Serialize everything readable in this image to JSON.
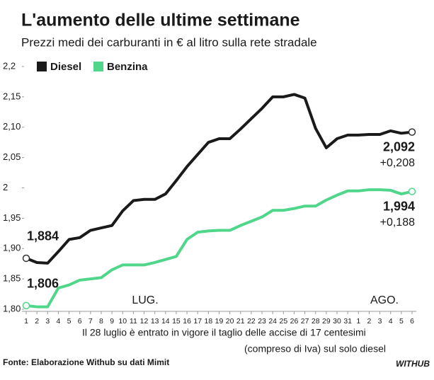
{
  "chart_data": {
    "type": "line",
    "title": "L'aumento delle ultime settimane",
    "subtitle": "Prezzi medi dei carburanti in € al litro sulla rete stradale",
    "categories": [
      "1",
      "2",
      "3",
      "4",
      "5",
      "6",
      "7",
      "8",
      "9",
      "10",
      "11",
      "12",
      "13",
      "14",
      "15",
      "16",
      "17",
      "18",
      "19",
      "20",
      "21",
      "22",
      "23",
      "24",
      "25",
      "26",
      "27",
      "28",
      "29",
      "30",
      "31",
      "1",
      "2",
      "3",
      "4",
      "5",
      "6"
    ],
    "month_labels": [
      "LUG.",
      "AGO."
    ],
    "series": [
      {
        "name": "Diesel",
        "color": "#1a1a1a",
        "values": [
          1.884,
          1.877,
          1.876,
          1.895,
          1.915,
          1.918,
          1.93,
          1.934,
          1.938,
          1.962,
          1.979,
          1.981,
          1.981,
          1.99,
          2.012,
          2.035,
          2.055,
          2.075,
          2.081,
          2.081,
          2.097,
          2.114,
          2.131,
          2.15,
          2.15,
          2.154,
          2.148,
          2.098,
          2.066,
          2.081,
          2.087,
          2.087,
          2.088,
          2.088,
          2.094,
          2.09,
          2.092
        ],
        "value_labels": [
          "1,884",
          null,
          null,
          null,
          null,
          null,
          null,
          null,
          null,
          null,
          null,
          null,
          null,
          null,
          null,
          null,
          null,
          null,
          null,
          null,
          null,
          null,
          null,
          null,
          null,
          null,
          null,
          null,
          null,
          null,
          null,
          null,
          null,
          null,
          null,
          null,
          "2,092"
        ],
        "change": "+0,208"
      },
      {
        "name": "Benzina",
        "color": "#4fd68a",
        "values": [
          1.806,
          1.804,
          1.804,
          1.835,
          1.84,
          1.848,
          1.85,
          1.852,
          1.865,
          1.873,
          1.873,
          1.873,
          1.877,
          1.882,
          1.887,
          1.915,
          1.927,
          1.929,
          1.93,
          1.93,
          1.938,
          1.945,
          1.952,
          1.963,
          1.963,
          1.966,
          1.97,
          1.97,
          1.98,
          1.988,
          1.995,
          1.995,
          1.997,
          1.997,
          1.996,
          1.99,
          1.994
        ],
        "value_labels": [
          "1,806",
          null,
          null,
          null,
          null,
          null,
          null,
          null,
          null,
          null,
          null,
          null,
          null,
          null,
          null,
          null,
          null,
          null,
          null,
          null,
          null,
          null,
          null,
          null,
          null,
          null,
          null,
          null,
          null,
          null,
          null,
          null,
          null,
          null,
          null,
          null,
          "1,994"
        ],
        "change": "+0,188"
      }
    ],
    "ylim": [
      1.8,
      2.2
    ],
    "yticks": [
      {
        "value": 1.8,
        "label": "1,80"
      },
      {
        "value": 1.85,
        "label": "1,85"
      },
      {
        "value": 1.9,
        "label": "1,90"
      },
      {
        "value": 1.95,
        "label": "1,95"
      },
      2,
      {
        "value": 2.05,
        "label": "2,05"
      },
      {
        "value": 2.1,
        "label": "2,10"
      },
      {
        "value": 2.15,
        "label": "2,15"
      },
      {
        "value": 2.2,
        "label": "2,2"
      }
    ],
    "note": [
      "Il 28 luglio è entrato in vigore il taglio delle accise di 17 centesimi",
      "(compreso di Iva) sul solo diesel"
    ],
    "source": "Fonte:  Elaborazione Withub su dati Mimit",
    "logo": "WITHUB"
  }
}
